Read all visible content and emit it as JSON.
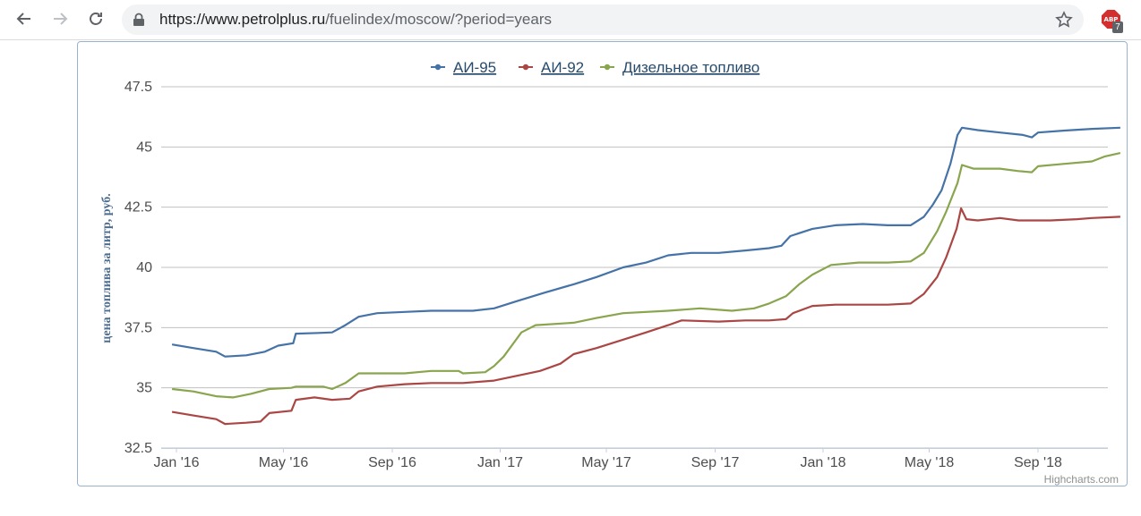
{
  "browser": {
    "url_host": "https://www.petrolplus.ru",
    "url_path": "/fuelindex/moscow/?period=years",
    "extension_badge": "7",
    "extension_label": "ABP"
  },
  "chart_data": {
    "type": "line",
    "title": "",
    "xlabel": "",
    "ylabel": "цена топлива за литр, руб.",
    "ylim": [
      32.5,
      47.5
    ],
    "y_ticks": [
      "47.5",
      "45",
      "42.5",
      "40",
      "37.5",
      "35",
      "32.5"
    ],
    "x_ticks": [
      "Jan '16",
      "May '16",
      "Sep '16",
      "Jan '17",
      "May '17",
      "Sep '17",
      "Jan '18",
      "May '18",
      "Sep '18"
    ],
    "x_tick_dates": [
      "2016-01-01",
      "2016-05-01",
      "2016-09-01",
      "2017-01-01",
      "2017-05-01",
      "2017-09-01",
      "2018-01-01",
      "2018-05-01",
      "2018-09-01"
    ],
    "grid": true,
    "legend_position": "top-center",
    "credits": "Highcharts.com",
    "series": [
      {
        "name": "АИ-95",
        "color": "#4572a7",
        "points": [
          [
            "2015-12-27",
            36.8
          ],
          [
            "2016-01-20",
            36.65
          ],
          [
            "2016-02-15",
            36.5
          ],
          [
            "2016-02-25",
            36.3
          ],
          [
            "2016-03-20",
            36.35
          ],
          [
            "2016-04-10",
            36.5
          ],
          [
            "2016-04-25",
            36.75
          ],
          [
            "2016-05-12",
            36.85
          ],
          [
            "2016-05-15",
            37.25
          ],
          [
            "2016-06-10",
            37.28
          ],
          [
            "2016-06-25",
            37.3
          ],
          [
            "2016-07-10",
            37.6
          ],
          [
            "2016-07-25",
            37.95
          ],
          [
            "2016-08-15",
            38.1
          ],
          [
            "2016-09-15",
            38.15
          ],
          [
            "2016-10-15",
            38.2
          ],
          [
            "2016-12-01",
            38.2
          ],
          [
            "2016-12-25",
            38.3
          ],
          [
            "2017-01-20",
            38.6
          ],
          [
            "2017-02-20",
            38.95
          ],
          [
            "2017-03-25",
            39.3
          ],
          [
            "2017-04-20",
            39.6
          ],
          [
            "2017-05-20",
            40.0
          ],
          [
            "2017-06-15",
            40.2
          ],
          [
            "2017-07-10",
            40.5
          ],
          [
            "2017-08-05",
            40.6
          ],
          [
            "2017-09-05",
            40.6
          ],
          [
            "2017-10-05",
            40.7
          ],
          [
            "2017-11-01",
            40.8
          ],
          [
            "2017-11-15",
            40.9
          ],
          [
            "2017-11-25",
            41.3
          ],
          [
            "2017-12-20",
            41.6
          ],
          [
            "2018-01-15",
            41.75
          ],
          [
            "2018-02-15",
            41.8
          ],
          [
            "2018-03-15",
            41.75
          ],
          [
            "2018-04-10",
            41.75
          ],
          [
            "2018-04-25",
            42.1
          ],
          [
            "2018-05-05",
            42.6
          ],
          [
            "2018-05-15",
            43.2
          ],
          [
            "2018-05-25",
            44.3
          ],
          [
            "2018-06-02",
            45.5
          ],
          [
            "2018-06-07",
            45.8
          ],
          [
            "2018-06-25",
            45.7
          ],
          [
            "2018-07-20",
            45.6
          ],
          [
            "2018-08-15",
            45.5
          ],
          [
            "2018-08-25",
            45.4
          ],
          [
            "2018-09-01",
            45.6
          ],
          [
            "2018-10-01",
            45.68
          ],
          [
            "2018-11-01",
            45.75
          ],
          [
            "2018-12-03",
            45.8
          ]
        ]
      },
      {
        "name": "АИ-92",
        "color": "#aa4643",
        "points": [
          [
            "2015-12-27",
            34.0
          ],
          [
            "2016-01-20",
            33.85
          ],
          [
            "2016-02-15",
            33.7
          ],
          [
            "2016-02-25",
            33.5
          ],
          [
            "2016-03-20",
            33.55
          ],
          [
            "2016-04-05",
            33.6
          ],
          [
            "2016-04-15",
            33.95
          ],
          [
            "2016-05-10",
            34.05
          ],
          [
            "2016-05-15",
            34.5
          ],
          [
            "2016-06-05",
            34.6
          ],
          [
            "2016-06-25",
            34.5
          ],
          [
            "2016-07-15",
            34.55
          ],
          [
            "2016-07-25",
            34.85
          ],
          [
            "2016-08-15",
            35.05
          ],
          [
            "2016-09-15",
            35.15
          ],
          [
            "2016-10-15",
            35.2
          ],
          [
            "2016-11-20",
            35.2
          ],
          [
            "2016-12-25",
            35.3
          ],
          [
            "2017-01-20",
            35.5
          ],
          [
            "2017-02-15",
            35.7
          ],
          [
            "2017-03-10",
            36.0
          ],
          [
            "2017-03-25",
            36.4
          ],
          [
            "2017-04-20",
            36.65
          ],
          [
            "2017-05-20",
            37.0
          ],
          [
            "2017-06-15",
            37.3
          ],
          [
            "2017-07-10",
            37.6
          ],
          [
            "2017-07-25",
            37.8
          ],
          [
            "2017-09-05",
            37.75
          ],
          [
            "2017-10-05",
            37.8
          ],
          [
            "2017-11-01",
            37.8
          ],
          [
            "2017-11-20",
            37.85
          ],
          [
            "2017-11-28",
            38.1
          ],
          [
            "2017-12-20",
            38.4
          ],
          [
            "2018-01-15",
            38.45
          ],
          [
            "2018-03-15",
            38.45
          ],
          [
            "2018-04-10",
            38.5
          ],
          [
            "2018-04-25",
            38.9
          ],
          [
            "2018-05-10",
            39.6
          ],
          [
            "2018-05-20",
            40.4
          ],
          [
            "2018-06-01",
            41.6
          ],
          [
            "2018-06-06",
            42.45
          ],
          [
            "2018-06-12",
            42.0
          ],
          [
            "2018-06-25",
            41.95
          ],
          [
            "2018-07-20",
            42.05
          ],
          [
            "2018-08-10",
            41.95
          ],
          [
            "2018-09-15",
            41.95
          ],
          [
            "2018-10-15",
            42.0
          ],
          [
            "2018-11-01",
            42.05
          ],
          [
            "2018-12-03",
            42.1
          ]
        ]
      },
      {
        "name": "Дизельное топливо",
        "color": "#89a54e",
        "points": [
          [
            "2015-12-27",
            34.95
          ],
          [
            "2016-01-20",
            34.85
          ],
          [
            "2016-02-15",
            34.65
          ],
          [
            "2016-03-05",
            34.6
          ],
          [
            "2016-03-25",
            34.75
          ],
          [
            "2016-04-15",
            34.95
          ],
          [
            "2016-05-10",
            35.0
          ],
          [
            "2016-05-15",
            35.05
          ],
          [
            "2016-06-15",
            35.05
          ],
          [
            "2016-06-25",
            34.95
          ],
          [
            "2016-07-10",
            35.2
          ],
          [
            "2016-07-25",
            35.6
          ],
          [
            "2016-09-15",
            35.6
          ],
          [
            "2016-10-15",
            35.7
          ],
          [
            "2016-11-15",
            35.7
          ],
          [
            "2016-11-20",
            35.6
          ],
          [
            "2016-12-15",
            35.65
          ],
          [
            "2016-12-25",
            35.9
          ],
          [
            "2017-01-05",
            36.3
          ],
          [
            "2017-01-25",
            37.3
          ],
          [
            "2017-02-10",
            37.6
          ],
          [
            "2017-03-25",
            37.7
          ],
          [
            "2017-04-20",
            37.9
          ],
          [
            "2017-05-20",
            38.1
          ],
          [
            "2017-07-10",
            38.2
          ],
          [
            "2017-08-15",
            38.3
          ],
          [
            "2017-09-20",
            38.2
          ],
          [
            "2017-10-15",
            38.3
          ],
          [
            "2017-11-01",
            38.5
          ],
          [
            "2017-11-20",
            38.8
          ],
          [
            "2017-12-05",
            39.3
          ],
          [
            "2017-12-20",
            39.7
          ],
          [
            "2018-01-10",
            40.1
          ],
          [
            "2018-02-10",
            40.2
          ],
          [
            "2018-03-15",
            40.2
          ],
          [
            "2018-04-10",
            40.25
          ],
          [
            "2018-04-25",
            40.6
          ],
          [
            "2018-05-10",
            41.5
          ],
          [
            "2018-05-20",
            42.3
          ],
          [
            "2018-06-02",
            43.5
          ],
          [
            "2018-06-07",
            44.25
          ],
          [
            "2018-06-20",
            44.1
          ],
          [
            "2018-07-20",
            44.1
          ],
          [
            "2018-08-10",
            44.0
          ],
          [
            "2018-08-25",
            43.95
          ],
          [
            "2018-09-01",
            44.2
          ],
          [
            "2018-10-01",
            44.3
          ],
          [
            "2018-11-01",
            44.4
          ],
          [
            "2018-11-15",
            44.6
          ],
          [
            "2018-12-03",
            44.75
          ]
        ]
      }
    ]
  }
}
